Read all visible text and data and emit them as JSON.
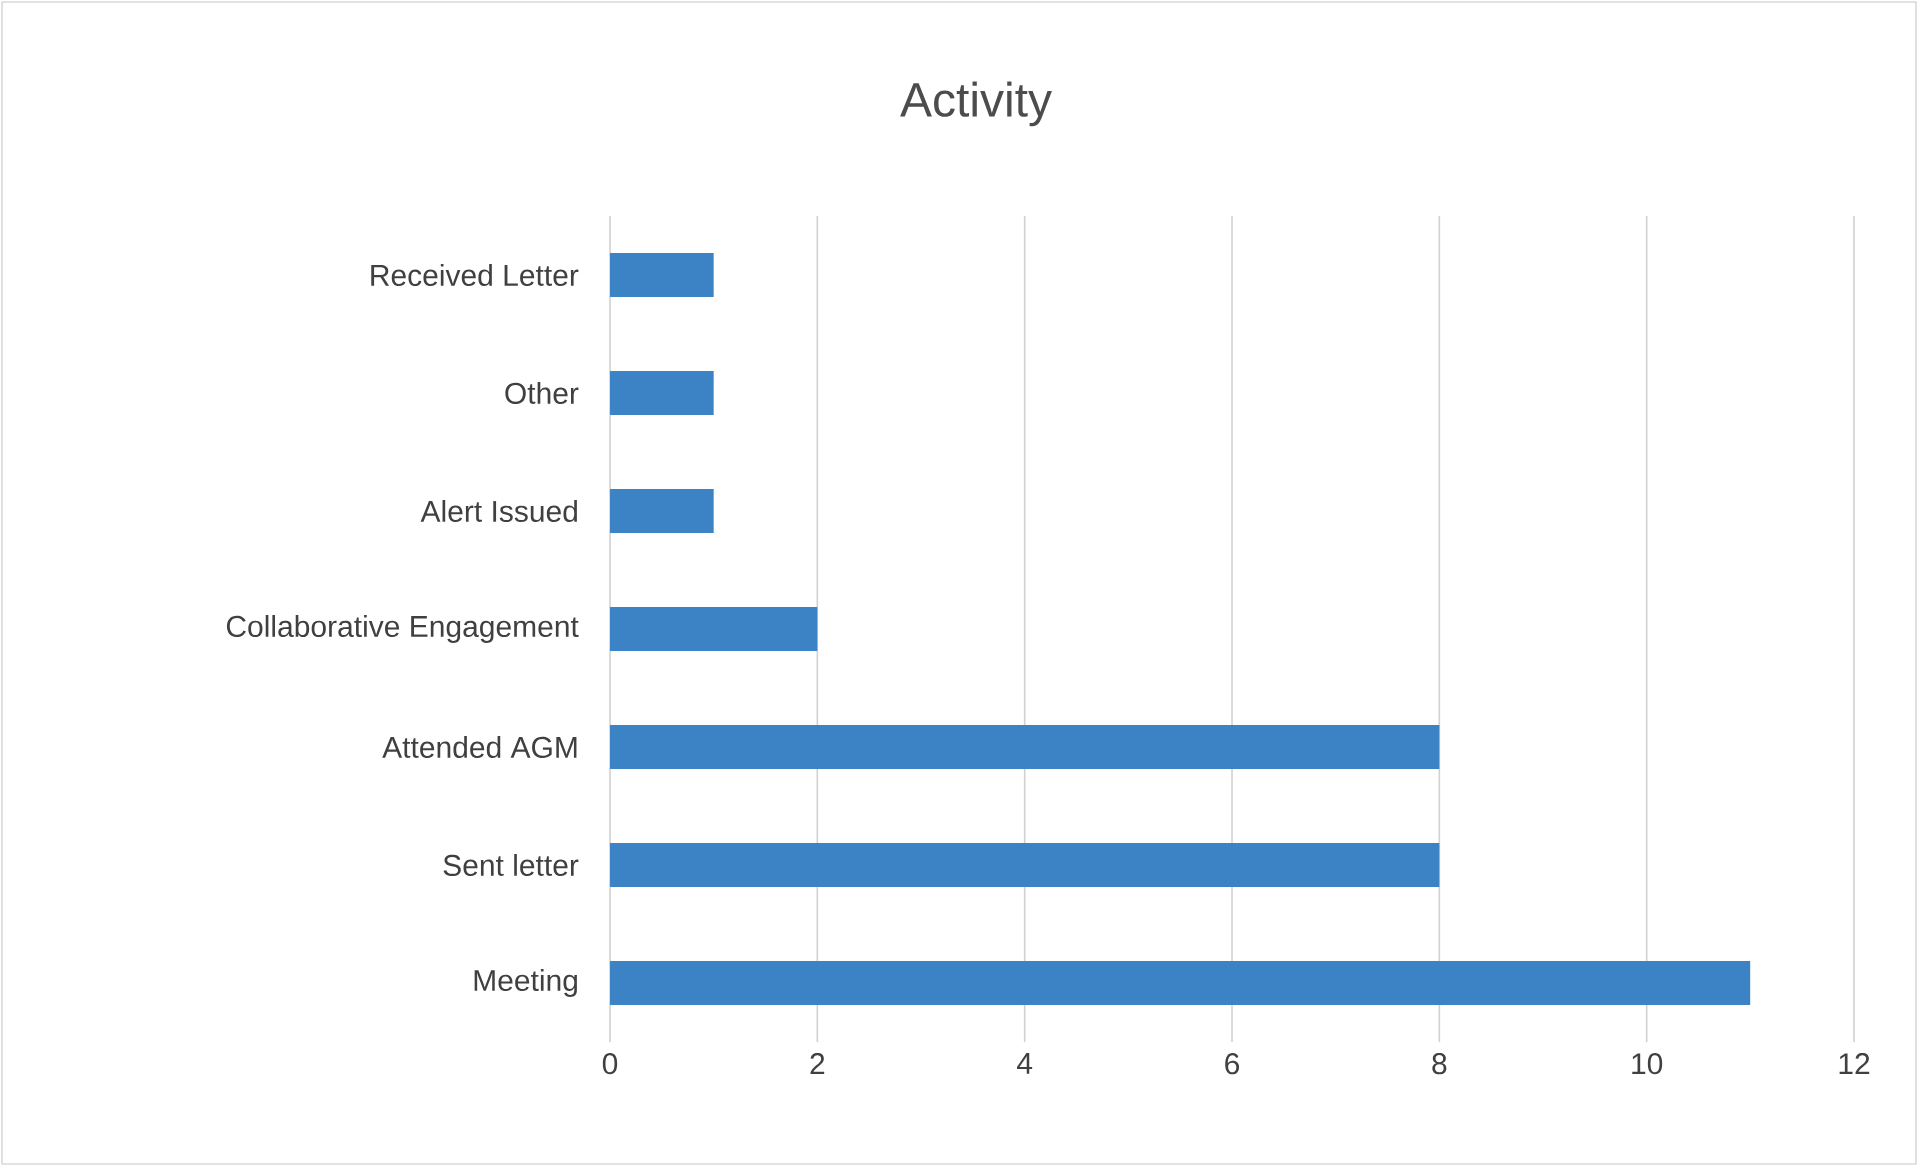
{
  "chart_data": {
    "type": "bar",
    "orientation": "horizontal",
    "title": "Activity",
    "categories": [
      "Received Letter",
      "Other",
      "Alert Issued",
      "Collaborative Engagement",
      "Attended AGM",
      "Sent letter",
      "Meeting"
    ],
    "values": [
      1,
      1,
      1,
      2,
      8,
      8,
      11
    ],
    "color": "#3b83c4",
    "xlim": [
      0,
      12
    ],
    "xticks": [
      0,
      2,
      4,
      6,
      8,
      10,
      12
    ],
    "grid": "x"
  }
}
